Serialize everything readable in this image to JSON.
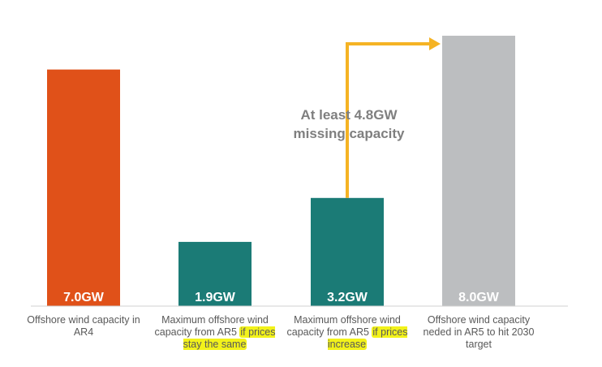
{
  "chart_data": {
    "type": "bar",
    "categories": [
      "Offshore wind capacity in AR4",
      "Maximum offshore wind capacity from AR5 if prices stay the same",
      "Maximum offshore wind capacity from AR5 if prices increase",
      "Offshore wind capacity neded in AR5 to hit 2030 target"
    ],
    "values": [
      7.0,
      1.9,
      3.2,
      8.0
    ],
    "value_labels": [
      "7.0GW",
      "1.9GW",
      "3.2GW",
      "8.0GW"
    ],
    "bar_colors": [
      "#e05119",
      "#1b7b76",
      "#1b7b76",
      "#bcbec0"
    ],
    "ylim": [
      0,
      8.0
    ],
    "title": "",
    "xlabel": "",
    "ylabel": "",
    "grid": false,
    "annotation": {
      "line1": "At least 4.8GW",
      "line2": "missing capacity",
      "from_category_index": 2,
      "to_category_index": 3,
      "arrow_color": "#f5b324"
    },
    "label_parts": [
      {
        "plain": "Offshore wind capacity in AR4",
        "highlight": ""
      },
      {
        "plain": "Maximum offshore wind capacity from AR5 ",
        "highlight": "if prices stay the same"
      },
      {
        "plain": "Maximum offshore wind capacity from AR5 ",
        "highlight": "if prices increase"
      },
      {
        "plain": "Offshore wind capacity neded in AR5 to hit 2030 target",
        "highlight": ""
      }
    ]
  }
}
